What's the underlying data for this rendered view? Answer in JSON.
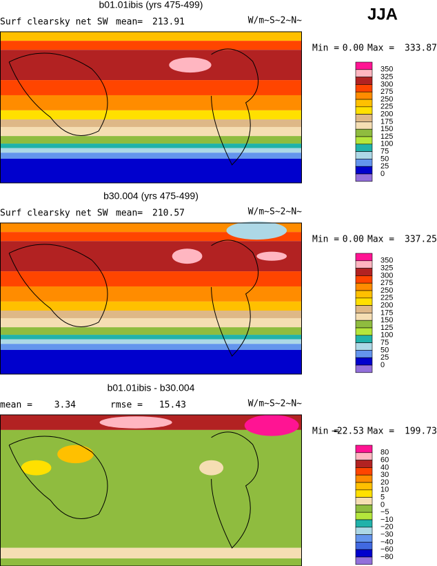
{
  "header": {
    "season": "JJA"
  },
  "panels": [
    {
      "title": "b01.01ibis (yrs 475-499)",
      "left": "Surf clearsky net SW",
      "stats": [
        {
          "label": "mean=",
          "value": "213.91"
        }
      ],
      "units": "W/m~S~2~N~",
      "min_label": "Min =",
      "min": "0.00",
      "max_label": "Max =",
      "max": "333.87",
      "legend": {
        "levels": [
          "350",
          "325",
          "300",
          "275",
          "250",
          "225",
          "200",
          "175",
          "150",
          "125",
          "100",
          "75",
          "50",
          "25",
          "0"
        ],
        "colors": [
          "#ff1493",
          "#ffb6c1",
          "#b22222",
          "#ff4500",
          "#ff8c00",
          "#ffc000",
          "#ffe000",
          "#deb887",
          "#f5deb3",
          "#8fbc3f",
          "#b4e63c",
          "#20b2aa",
          "#add8e6",
          "#6495ed",
          "#0000cd",
          "#9370db"
        ]
      }
    },
    {
      "title": "b30.004 (yrs 475-499)",
      "left": "Surf clearsky net SW",
      "stats": [
        {
          "label": "mean=",
          "value": "210.57"
        }
      ],
      "units": "W/m~S~2~N~",
      "min_label": "Min =",
      "min": "0.00",
      "max_label": "Max =",
      "max": "337.25",
      "legend": {
        "levels": [
          "350",
          "325",
          "300",
          "275",
          "250",
          "225",
          "200",
          "175",
          "150",
          "125",
          "100",
          "75",
          "50",
          "25",
          "0"
        ],
        "colors": [
          "#ff1493",
          "#ffb6c1",
          "#b22222",
          "#ff4500",
          "#ff8c00",
          "#ffc000",
          "#ffe000",
          "#deb887",
          "#f5deb3",
          "#8fbc3f",
          "#b4e63c",
          "#20b2aa",
          "#add8e6",
          "#6495ed",
          "#0000cd",
          "#9370db"
        ]
      }
    },
    {
      "title": "b01.01ibis - b30.004",
      "left": "",
      "stats": [
        {
          "label": "mean =",
          "value": "3.34"
        },
        {
          "label": "rmse =",
          "value": "15.43"
        }
      ],
      "units": "W/m~S~2~N~",
      "min_label": "Min =",
      "min": "−22.53",
      "max_label": "Max =",
      "max": "199.73",
      "legend": {
        "levels": [
          "80",
          "60",
          "40",
          "30",
          "20",
          "10",
          "5",
          "0",
          "−5",
          "−10",
          "−20",
          "−30",
          "−40",
          "−60",
          "−80"
        ],
        "colors": [
          "#ff1493",
          "#ffb6c1",
          "#b22222",
          "#ff4500",
          "#ff8c00",
          "#ffc000",
          "#ffe000",
          "#f5deb3",
          "#8fbc3f",
          "#b4e63c",
          "#20b2aa",
          "#add8e6",
          "#6495ed",
          "#4169e1",
          "#0000cd",
          "#9370db"
        ]
      }
    }
  ]
}
